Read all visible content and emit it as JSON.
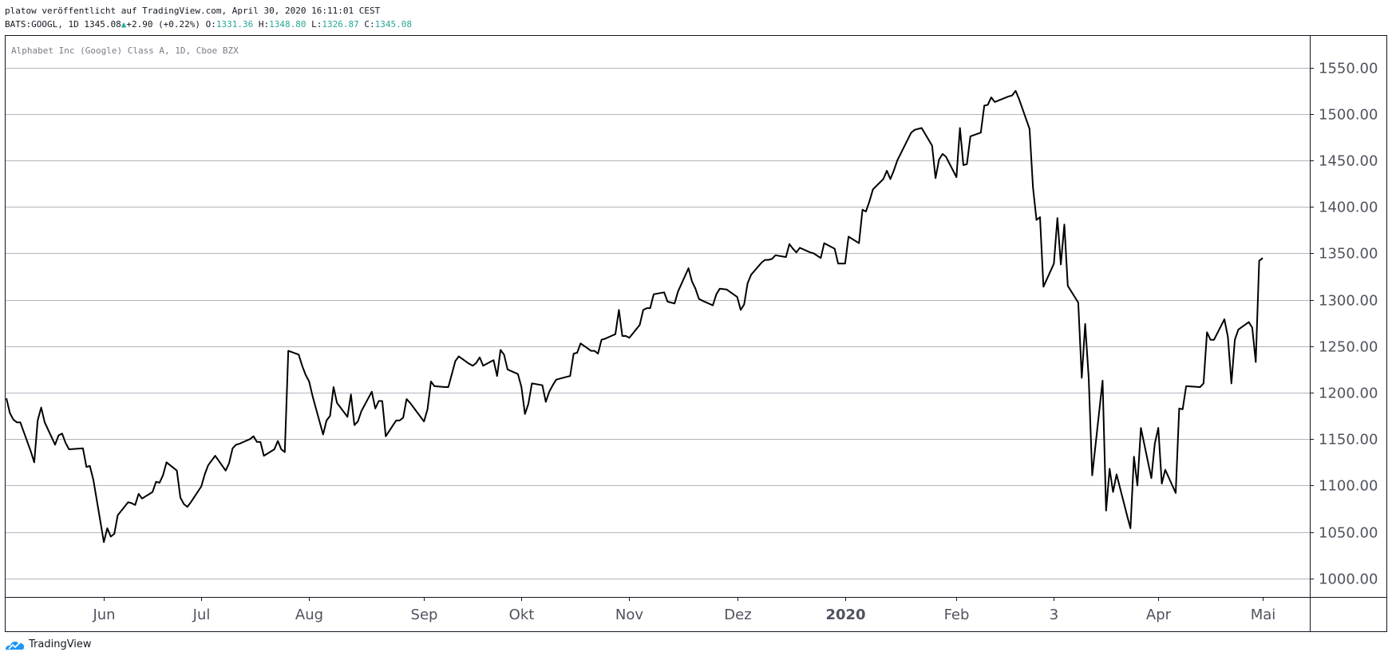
{
  "header": {
    "publish_line": "platow veröffentlicht auf TradingView.com, April 30, 2020 16:11:01 CEST",
    "symbol": "BATS:GOOGL, 1D",
    "last": "1345.08",
    "change": "+2.90 (+0.22%)",
    "o_label": "O:",
    "o_value": "1331.36",
    "h_label": "H:",
    "h_value": "1348.80",
    "l_label": "L:",
    "l_value": "1326.87",
    "c_label": "C:",
    "c_value": "1345.08"
  },
  "brand": {
    "name": "TradingView"
  },
  "colors": {
    "line": "#000000",
    "grid": "#b2b5be",
    "accent": "#26a69a",
    "text": "#131722",
    "axis_text": "#50535e"
  },
  "chart_data": {
    "type": "line",
    "title": "Alphabet Inc (Google) Class A, 1D, Cboe BZX",
    "xlabel": "",
    "ylabel": "",
    "ylim": [
      980,
      1585
    ],
    "grid": true,
    "y_ticks": [
      "1000.00",
      "1050.00",
      "1100.00",
      "1150.00",
      "1200.00",
      "1250.00",
      "1300.00",
      "1350.00",
      "1400.00",
      "1450.00",
      "1500.00",
      "1550.00"
    ],
    "x_ticks": [
      {
        "date": "2019-06-03",
        "label": "Jun",
        "bold": false
      },
      {
        "date": "2019-07-01",
        "label": "Jul",
        "bold": false
      },
      {
        "date": "2019-08-01",
        "label": "Aug",
        "bold": false
      },
      {
        "date": "2019-09-03",
        "label": "Sep",
        "bold": false
      },
      {
        "date": "2019-10-01",
        "label": "Okt",
        "bold": false
      },
      {
        "date": "2019-11-01",
        "label": "Nov",
        "bold": false
      },
      {
        "date": "2019-12-02",
        "label": "Dez",
        "bold": false
      },
      {
        "date": "2020-01-02",
        "label": "2020",
        "bold": true
      },
      {
        "date": "2020-02-03",
        "label": "Feb",
        "bold": false
      },
      {
        "date": "2020-03-02",
        "label": "3",
        "bold": false
      },
      {
        "date": "2020-04-01",
        "label": "Apr",
        "bold": false
      },
      {
        "date": "2020-05-01",
        "label": "Mai",
        "bold": false
      }
    ],
    "series": [
      {
        "values": [
          [
            "2019-05-06",
            1194
          ],
          [
            "2019-05-07",
            1178
          ],
          [
            "2019-05-08",
            1171
          ],
          [
            "2019-05-09",
            1168
          ],
          [
            "2019-05-10",
            1168
          ],
          [
            "2019-05-13",
            1137
          ],
          [
            "2019-05-14",
            1125
          ],
          [
            "2019-05-15",
            1170
          ],
          [
            "2019-05-16",
            1184
          ],
          [
            "2019-05-17",
            1168
          ],
          [
            "2019-05-20",
            1144
          ],
          [
            "2019-05-21",
            1154
          ],
          [
            "2019-05-22",
            1156
          ],
          [
            "2019-05-23",
            1146
          ],
          [
            "2019-05-24",
            1139
          ],
          [
            "2019-05-28",
            1140
          ],
          [
            "2019-05-29",
            1120
          ],
          [
            "2019-05-30",
            1121
          ],
          [
            "2019-05-31",
            1106
          ],
          [
            "2019-06-03",
            1039
          ],
          [
            "2019-06-04",
            1054
          ],
          [
            "2019-06-05",
            1045
          ],
          [
            "2019-06-06",
            1048
          ],
          [
            "2019-06-07",
            1068
          ],
          [
            "2019-06-10",
            1082
          ],
          [
            "2019-06-11",
            1081
          ],
          [
            "2019-06-12",
            1079
          ],
          [
            "2019-06-13",
            1091
          ],
          [
            "2019-06-14",
            1086
          ],
          [
            "2019-06-17",
            1093
          ],
          [
            "2019-06-18",
            1104
          ],
          [
            "2019-06-19",
            1103
          ],
          [
            "2019-06-20",
            1111
          ],
          [
            "2019-06-21",
            1125
          ],
          [
            "2019-06-24",
            1116
          ],
          [
            "2019-06-25",
            1087
          ],
          [
            "2019-06-26",
            1080
          ],
          [
            "2019-06-27",
            1077
          ],
          [
            "2019-06-28",
            1082
          ],
          [
            "2019-07-01",
            1099
          ],
          [
            "2019-07-02",
            1112
          ],
          [
            "2019-07-03",
            1122
          ],
          [
            "2019-07-05",
            1132
          ],
          [
            "2019-07-08",
            1116
          ],
          [
            "2019-07-09",
            1124
          ],
          [
            "2019-07-10",
            1140
          ],
          [
            "2019-07-11",
            1144
          ],
          [
            "2019-07-12",
            1145
          ],
          [
            "2019-07-15",
            1150
          ],
          [
            "2019-07-16",
            1153
          ],
          [
            "2019-07-17",
            1147
          ],
          [
            "2019-07-18",
            1147
          ],
          [
            "2019-07-19",
            1132
          ],
          [
            "2019-07-22",
            1139
          ],
          [
            "2019-07-23",
            1148
          ],
          [
            "2019-07-24",
            1139
          ],
          [
            "2019-07-25",
            1136
          ],
          [
            "2019-07-26",
            1245
          ],
          [
            "2019-07-29",
            1241
          ],
          [
            "2019-07-30",
            1229
          ],
          [
            "2019-07-31",
            1219
          ],
          [
            "2019-08-01",
            1212
          ],
          [
            "2019-08-02",
            1196
          ],
          [
            "2019-08-05",
            1155
          ],
          [
            "2019-08-06",
            1170
          ],
          [
            "2019-08-07",
            1175
          ],
          [
            "2019-08-08",
            1206
          ],
          [
            "2019-08-09",
            1189
          ],
          [
            "2019-08-12",
            1174
          ],
          [
            "2019-08-13",
            1198
          ],
          [
            "2019-08-14",
            1165
          ],
          [
            "2019-08-15",
            1169
          ],
          [
            "2019-08-16",
            1180
          ],
          [
            "2019-08-19",
            1201
          ],
          [
            "2019-08-20",
            1183
          ],
          [
            "2019-08-21",
            1191
          ],
          [
            "2019-08-22",
            1191
          ],
          [
            "2019-08-23",
            1153
          ],
          [
            "2019-08-26",
            1170
          ],
          [
            "2019-08-27",
            1170
          ],
          [
            "2019-08-28",
            1173
          ],
          [
            "2019-08-29",
            1193
          ],
          [
            "2019-08-30",
            1189
          ],
          [
            "2019-09-03",
            1169
          ],
          [
            "2019-09-04",
            1182
          ],
          [
            "2019-09-05",
            1212
          ],
          [
            "2019-09-06",
            1207
          ],
          [
            "2019-09-09",
            1206
          ],
          [
            "2019-09-10",
            1206
          ],
          [
            "2019-09-11",
            1220
          ],
          [
            "2019-09-12",
            1234
          ],
          [
            "2019-09-13",
            1239
          ],
          [
            "2019-09-16",
            1231
          ],
          [
            "2019-09-17",
            1229
          ],
          [
            "2019-09-18",
            1232
          ],
          [
            "2019-09-19",
            1238
          ],
          [
            "2019-09-20",
            1229
          ],
          [
            "2019-09-23",
            1235
          ],
          [
            "2019-09-24",
            1218
          ],
          [
            "2019-09-25",
            1246
          ],
          [
            "2019-09-26",
            1241
          ],
          [
            "2019-09-27",
            1225
          ],
          [
            "2019-09-30",
            1220
          ],
          [
            "2019-10-01",
            1206
          ],
          [
            "2019-10-02",
            1177
          ],
          [
            "2019-10-03",
            1188
          ],
          [
            "2019-10-04",
            1210
          ],
          [
            "2019-10-07",
            1208
          ],
          [
            "2019-10-08",
            1190
          ],
          [
            "2019-10-09",
            1201
          ],
          [
            "2019-10-10",
            1208
          ],
          [
            "2019-10-11",
            1214
          ],
          [
            "2019-10-14",
            1217
          ],
          [
            "2019-10-15",
            1218
          ],
          [
            "2019-10-16",
            1242
          ],
          [
            "2019-10-17",
            1243
          ],
          [
            "2019-10-18",
            1253
          ],
          [
            "2019-10-21",
            1245
          ],
          [
            "2019-10-22",
            1245
          ],
          [
            "2019-10-23",
            1242
          ],
          [
            "2019-10-24",
            1257
          ],
          [
            "2019-10-25",
            1258
          ],
          [
            "2019-10-28",
            1263
          ],
          [
            "2019-10-29",
            1289
          ],
          [
            "2019-10-30",
            1261
          ],
          [
            "2019-10-31",
            1261
          ],
          [
            "2019-11-01",
            1259
          ],
          [
            "2019-11-04",
            1273
          ],
          [
            "2019-11-05",
            1289
          ],
          [
            "2019-11-06",
            1291
          ],
          [
            "2019-11-07",
            1291
          ],
          [
            "2019-11-08",
            1306
          ],
          [
            "2019-11-11",
            1308
          ],
          [
            "2019-11-12",
            1298
          ],
          [
            "2019-11-13",
            1297
          ],
          [
            "2019-11-14",
            1296
          ],
          [
            "2019-11-15",
            1309
          ],
          [
            "2019-11-18",
            1334
          ],
          [
            "2019-11-19",
            1320
          ],
          [
            "2019-11-20",
            1312
          ],
          [
            "2019-11-21",
            1301
          ],
          [
            "2019-11-22",
            1299
          ],
          [
            "2019-11-25",
            1294
          ],
          [
            "2019-11-26",
            1306
          ],
          [
            "2019-11-27",
            1312
          ],
          [
            "2019-11-29",
            1311
          ],
          [
            "2019-12-02",
            1303
          ],
          [
            "2019-12-03",
            1289
          ],
          [
            "2019-12-04",
            1295
          ],
          [
            "2019-12-05",
            1318
          ],
          [
            "2019-12-06",
            1327
          ],
          [
            "2019-12-09",
            1340
          ],
          [
            "2019-12-10",
            1343
          ],
          [
            "2019-12-11",
            1343
          ],
          [
            "2019-12-12",
            1344
          ],
          [
            "2019-12-13",
            1348
          ],
          [
            "2019-12-16",
            1346
          ],
          [
            "2019-12-17",
            1360
          ],
          [
            "2019-12-18",
            1355
          ],
          [
            "2019-12-19",
            1351
          ],
          [
            "2019-12-20",
            1356
          ],
          [
            "2019-12-23",
            1351
          ],
          [
            "2019-12-24",
            1350
          ],
          [
            "2019-12-26",
            1345
          ],
          [
            "2019-12-27",
            1361
          ],
          [
            "2019-12-30",
            1355
          ],
          [
            "2019-12-31",
            1339
          ],
          [
            "2020-01-02",
            1339
          ],
          [
            "2020-01-03",
            1368
          ],
          [
            "2020-01-06",
            1361
          ],
          [
            "2020-01-07",
            1397
          ],
          [
            "2020-01-08",
            1395
          ],
          [
            "2020-01-09",
            1406
          ],
          [
            "2020-01-10",
            1419
          ],
          [
            "2020-01-13",
            1430
          ],
          [
            "2020-01-14",
            1439
          ],
          [
            "2020-01-15",
            1430
          ],
          [
            "2020-01-16",
            1439
          ],
          [
            "2020-01-17",
            1450
          ],
          [
            "2020-01-21",
            1480
          ],
          [
            "2020-01-22",
            1483
          ],
          [
            "2020-01-23",
            1484
          ],
          [
            "2020-01-24",
            1485
          ],
          [
            "2020-01-27",
            1466
          ],
          [
            "2020-01-28",
            1431
          ],
          [
            "2020-01-29",
            1451
          ],
          [
            "2020-01-30",
            1457
          ],
          [
            "2020-01-31",
            1454
          ],
          [
            "2020-02-03",
            1432
          ],
          [
            "2020-02-04",
            1485
          ],
          [
            "2020-02-05",
            1445
          ],
          [
            "2020-02-06",
            1446
          ],
          [
            "2020-02-07",
            1476
          ],
          [
            "2020-02-10",
            1480
          ],
          [
            "2020-02-11",
            1509
          ],
          [
            "2020-02-12",
            1510
          ],
          [
            "2020-02-13",
            1518
          ],
          [
            "2020-02-14",
            1513
          ],
          [
            "2020-02-18",
            1519
          ],
          [
            "2020-02-19",
            1520
          ],
          [
            "2020-02-20",
            1525
          ],
          [
            "2020-02-21",
            1516
          ],
          [
            "2020-02-24",
            1484
          ],
          [
            "2020-02-25",
            1421
          ],
          [
            "2020-02-26",
            1386
          ],
          [
            "2020-02-27",
            1389
          ],
          [
            "2020-02-28",
            1314
          ],
          [
            "2020-03-02",
            1339
          ],
          [
            "2020-03-03",
            1388
          ],
          [
            "2020-03-04",
            1338
          ],
          [
            "2020-03-05",
            1381
          ],
          [
            "2020-03-06",
            1315
          ],
          [
            "2020-03-09",
            1297
          ],
          [
            "2020-03-10",
            1216
          ],
          [
            "2020-03-11",
            1274
          ],
          [
            "2020-03-12",
            1216
          ],
          [
            "2020-03-13",
            1111
          ],
          [
            "2020-03-16",
            1213
          ],
          [
            "2020-03-17",
            1073
          ],
          [
            "2020-03-18",
            1118
          ],
          [
            "2020-03-19",
            1093
          ],
          [
            "2020-03-20",
            1112
          ],
          [
            "2020-03-23",
            1068
          ],
          [
            "2020-03-24",
            1054
          ],
          [
            "2020-03-25",
            1131
          ],
          [
            "2020-03-26",
            1100
          ],
          [
            "2020-03-27",
            1162
          ],
          [
            "2020-03-30",
            1108
          ],
          [
            "2020-03-31",
            1145
          ],
          [
            "2020-04-01",
            1162
          ],
          [
            "2020-04-02",
            1102
          ],
          [
            "2020-04-03",
            1117
          ],
          [
            "2020-04-06",
            1092
          ],
          [
            "2020-04-07",
            1183
          ],
          [
            "2020-04-08",
            1182
          ],
          [
            "2020-04-09",
            1207
          ],
          [
            "2020-04-13",
            1206
          ],
          [
            "2020-04-14",
            1210
          ],
          [
            "2020-04-15",
            1265
          ],
          [
            "2020-04-16",
            1257
          ],
          [
            "2020-04-17",
            1257
          ],
          [
            "2020-04-20",
            1279
          ],
          [
            "2020-04-21",
            1260
          ],
          [
            "2020-04-22",
            1210
          ],
          [
            "2020-04-23",
            1257
          ],
          [
            "2020-04-24",
            1268
          ],
          [
            "2020-04-27",
            1276
          ],
          [
            "2020-04-28",
            1270
          ],
          [
            "2020-04-29",
            1233
          ],
          [
            "2020-04-30",
            1342
          ],
          [
            "2020-05-01",
            1345
          ]
        ]
      }
    ]
  }
}
